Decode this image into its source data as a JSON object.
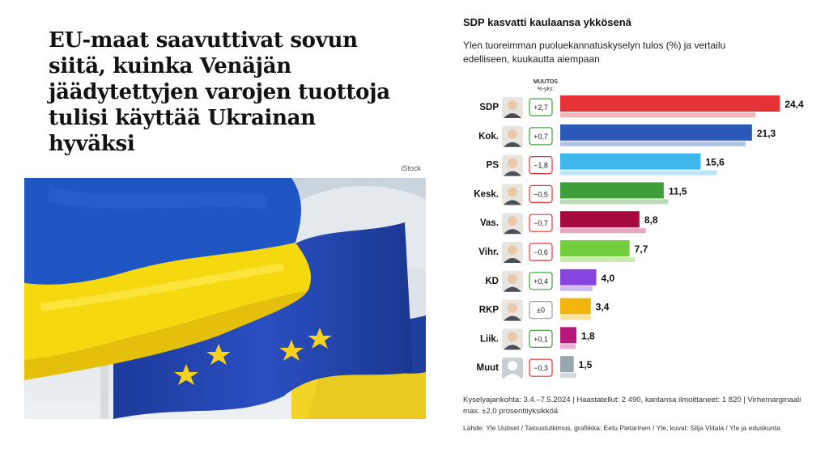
{
  "article": {
    "headline": "EU-maat saavuttivat sovun siitä, kuinka Venäjän jäädytettyjen varojen tuottoja tulisi käyttää Ukrainan hyväksi",
    "photo_credit": "iStock",
    "photo_icon": "flags-photo"
  },
  "chart": {
    "title": "SDP kasvatti kaulaansa ykkösenä",
    "subtitle": "Ylen tuoreimman puoluekannatuskyselyn tulos (%) ja vertailu edelliseen, kuukautta aiempaan",
    "change_header_title": "MUUTOS",
    "change_header_unit": "%-yks.",
    "footnote": "Kyselyajankohta: 3.4.–7.5.2024 | Haastatellut: 2 490, kantansa ilmoittaneet: 1 820 | Virhemarginaali max. ±2,0 prosenttiyksikköä",
    "source": "Lähde: Yle Uutiset / Taloustutkimus, grafiikka: Eetu Pietarinen / Yle, kuvat: Silja Viitala / Yle ja eduskunta"
  },
  "chart_data": {
    "type": "bar",
    "orientation": "horizontal",
    "title": "SDP kasvatti kaulaansa ykkösenä",
    "categories": [
      "SDP",
      "Kok.",
      "PS",
      "Kesk.",
      "Vas.",
      "Vihr.",
      "KD",
      "RKP",
      "Liik.",
      "Muut"
    ],
    "series": [
      {
        "values": [
          24.4,
          21.3,
          15.6,
          11.5,
          8.8,
          7.7,
          4.0,
          3.4,
          1.8,
          1.5
        ]
      },
      {
        "values": [
          21.7,
          20.6,
          17.4,
          12.0,
          9.5,
          8.3,
          3.6,
          3.4,
          1.7,
          1.8
        ]
      }
    ],
    "value_labels": [
      "24,4",
      "21,3",
      "15,6",
      "11,5",
      "8,8",
      "7,7",
      "4,0",
      "3,4",
      "1,8",
      "1,5"
    ],
    "change_labels": [
      "+2,7",
      "+0,7",
      "−1,8",
      "−0,5",
      "−0,7",
      "−0,6",
      "+0,4",
      "±0",
      "+0,1",
      "−0,3"
    ],
    "change_direction": [
      "up",
      "up",
      "down",
      "down",
      "down",
      "down",
      "up",
      "flat",
      "up",
      "down"
    ],
    "colors": [
      "#e53237",
      "#2a59b8",
      "#3cb8ec",
      "#3e9f3a",
      "#a6083f",
      "#74cd3c",
      "#8844e0",
      "#f2b50d",
      "#b8187a",
      "#9aa6ad"
    ],
    "prev_colors": [
      "#f6b3b6",
      "#b1c3ea",
      "#b9e6f8",
      "#b8dcb5",
      "#e5a5bc",
      "#c8ecae",
      "#d1b8f3",
      "#fbe2a0",
      "#e8aed3",
      "#d3d8dc"
    ],
    "change_colors": {
      "up": "#3e9f3a",
      "down": "#e53237",
      "flat": "#999999"
    },
    "xlim": [
      0,
      25
    ],
    "grid": false,
    "legend": "none"
  }
}
